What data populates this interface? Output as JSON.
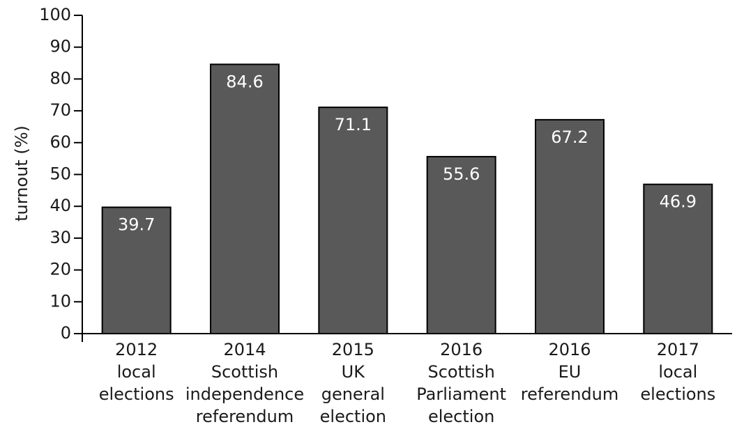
{
  "chart_data": {
    "type": "bar",
    "categories": [
      [
        "2012",
        "local",
        "elections"
      ],
      [
        "2014",
        "Scottish",
        "independence",
        "referendum"
      ],
      [
        "2015",
        "UK",
        "general",
        "election"
      ],
      [
        "2016",
        "Scottish",
        "Parliament",
        "election"
      ],
      [
        "2016",
        "EU",
        "referendum"
      ],
      [
        "2017",
        "local",
        "elections"
      ]
    ],
    "values": [
      39.7,
      84.6,
      71.1,
      55.6,
      67.2,
      46.9
    ],
    "value_labels": [
      "39.7",
      "84.6",
      "71.1",
      "55.6",
      "67.2",
      "46.9"
    ],
    "ylabel": "turnout (%)",
    "ylim": [
      0,
      100
    ],
    "yticks": [
      0,
      10,
      20,
      30,
      40,
      50,
      60,
      70,
      80,
      90,
      100
    ],
    "bar_color": "#595959",
    "bar_edge_color": "#000000",
    "label_color": "#ffffff",
    "grid": false,
    "legend": "none"
  }
}
